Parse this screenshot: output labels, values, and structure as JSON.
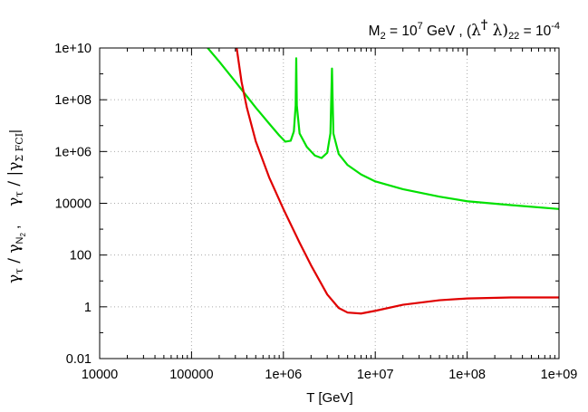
{
  "chart_data": {
    "type": "line",
    "title_parts": {
      "m": "M",
      "m_sub": "2",
      "eq1": " = 10",
      "eq1_sup": "7",
      "unit": " GeV ,  (",
      "lambda1": "λ",
      "dagger": "†",
      "lambda2": " λ)",
      "idx": "22",
      "eq2": " = 10",
      "eq2_sup": "-4"
    },
    "xlabel": "T [GeV]",
    "ylabel_parts": {
      "g1": "γ",
      "tau1": "τ",
      "slash1": " / γ",
      "n": "N",
      "n_sub": "2",
      "comma": " ,     ",
      "g2": "γ",
      "tau2": "τ",
      "slash2": " / |γ",
      "sigma": "Σ FCI",
      "bar": "|"
    },
    "xscale": "log",
    "yscale": "log",
    "xlim": [
      10000,
      1000000000
    ],
    "ylim": [
      0.01,
      10000000000
    ],
    "x_ticks": [
      10000,
      100000,
      1000000,
      10000000,
      100000000,
      1000000000
    ],
    "x_tick_labels": [
      "10000",
      "100000",
      "1e+06",
      "1e+07",
      "1e+08",
      "1e+09"
    ],
    "y_ticks": [
      0.01,
      1,
      100,
      10000,
      1000000,
      100000000,
      10000000000
    ],
    "y_tick_labels": [
      "0.01",
      "1",
      "100",
      "10000",
      "1e+06",
      "1e+08",
      "1e+10"
    ],
    "grid": true,
    "series": [
      {
        "color": "#00e000",
        "points": [
          [
            150000,
            10000000000
          ],
          [
            200000,
            3000000000
          ],
          [
            300000,
            500000000
          ],
          [
            500000,
            50000000
          ],
          [
            700000,
            12000000
          ],
          [
            900000,
            4200000
          ],
          [
            1050000,
            2400000
          ],
          [
            1200000,
            2600000
          ],
          [
            1300000,
            6000000
          ],
          [
            1360000,
            60000000
          ],
          [
            1380000,
            4000000000
          ],
          [
            1400000,
            60000000
          ],
          [
            1500000,
            5000000
          ],
          [
            1800000,
            1500000
          ],
          [
            2200000,
            700000
          ],
          [
            2600000,
            560000
          ],
          [
            3000000,
            900000
          ],
          [
            3250000,
            5000000
          ],
          [
            3380000,
            1600000000
          ],
          [
            3500000,
            5000000
          ],
          [
            4000000,
            800000
          ],
          [
            5000000,
            300000
          ],
          [
            7000000,
            130000
          ],
          [
            10000000,
            70000
          ],
          [
            20000000,
            35000
          ],
          [
            50000000,
            18000
          ],
          [
            100000000,
            12000
          ],
          [
            300000000,
            8500
          ],
          [
            1000000000,
            6000
          ]
        ]
      },
      {
        "color": "#e00000",
        "points": [
          [
            310000,
            10000000000
          ],
          [
            350000,
            500000000
          ],
          [
            400000,
            50000000
          ],
          [
            500000,
            2500000
          ],
          [
            700000,
            100000
          ],
          [
            1000000,
            6000
          ],
          [
            1500000,
            300
          ],
          [
            2000000,
            40
          ],
          [
            3000000,
            3
          ],
          [
            4000000,
            0.9
          ],
          [
            5000000,
            0.6
          ],
          [
            7000000,
            0.55
          ],
          [
            10000000,
            0.7
          ],
          [
            20000000,
            1.2
          ],
          [
            50000000,
            1.8
          ],
          [
            100000000,
            2.1
          ],
          [
            300000000,
            2.3
          ],
          [
            1000000000,
            2.3
          ]
        ]
      }
    ]
  }
}
